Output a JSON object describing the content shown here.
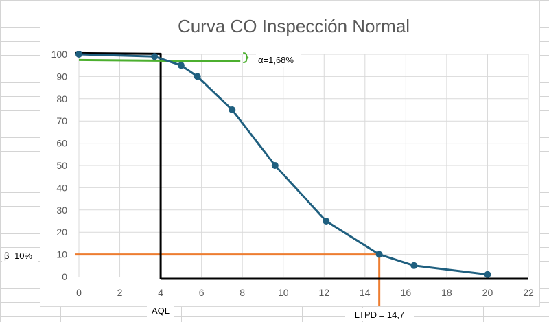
{
  "chart_data": {
    "type": "line",
    "title": "Curva CO Inspección Normal",
    "xlabel": "",
    "ylabel": "",
    "xlim": [
      0,
      22
    ],
    "ylim": [
      0,
      100
    ],
    "x_ticks": [
      "0",
      "2",
      "4",
      "6",
      "8",
      "10",
      "12",
      "14",
      "16",
      "18",
      "20",
      "22"
    ],
    "y_ticks": [
      "0",
      "10",
      "20",
      "30",
      "40",
      "50",
      "60",
      "70",
      "80",
      "90",
      "100"
    ],
    "grid": true,
    "series": [
      {
        "points": [
          {
            "x": 0,
            "y": 100
          },
          {
            "x": 3.7,
            "y": 99
          },
          {
            "x": 5,
            "y": 95
          },
          {
            "x": 5.8,
            "y": 90
          },
          {
            "x": 7.5,
            "y": 75
          },
          {
            "x": 9.6,
            "y": 50
          },
          {
            "x": 12.1,
            "y": 25
          },
          {
            "x": 14.7,
            "y": 10
          },
          {
            "x": 16.4,
            "y": 5
          },
          {
            "x": 20,
            "y": 1
          }
        ],
        "color": "#1f5f7f"
      }
    ],
    "annotations": {
      "alpha_label": "α=1,68%",
      "beta_label": "β=10%",
      "aql_label": "AQL",
      "ltpd_label": "LTPD = 14,7",
      "aql_x": 4,
      "ltpd_x": 14.7,
      "beta_y": 10,
      "alpha_line": {
        "x_from": 0,
        "x_to": 7.9,
        "y_from": 97.4,
        "y_to": 96.8
      },
      "aql_top_y": 100.5,
      "aql_line_color": "#000000",
      "alpha_line_color": "#4caf2f",
      "beta_line_color": "#ed7d31"
    }
  }
}
